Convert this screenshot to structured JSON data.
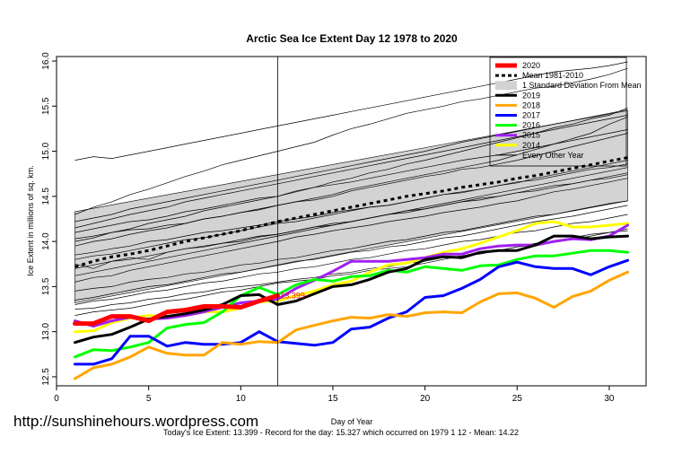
{
  "chart_data": {
    "type": "line",
    "title": "Arctic Sea Ice Extent Day 12 1978 to 2020",
    "xlabel": "Day of Year",
    "ylabel": "Ice Extent in millions of sq. km.",
    "xlim": [
      0,
      32
    ],
    "ylim": [
      12.4,
      16.05
    ],
    "xticks": [
      0,
      5,
      10,
      15,
      20,
      25,
      30
    ],
    "yticks": [
      12.5,
      13.0,
      13.5,
      14.0,
      14.5,
      15.0,
      15.5,
      16.0
    ],
    "current_day": 12,
    "current_value_label": "13.399",
    "watermark": "http://sunshinehours.wordpress.com",
    "footer": "Today's Ice Extent: 13.399   - Record for the day: 15.327 which occurred on 1979 1 12  - Mean: 14.22",
    "legend_position": "top-right",
    "legend": [
      {
        "label": "2020",
        "color": "#ff0000",
        "style": "solid",
        "width": 5
      },
      {
        "label": "Mean 1981-2010",
        "color": "#000000",
        "style": "dashed",
        "width": 3
      },
      {
        "label": "1 Standard Deviation From Mean",
        "color": "#d3d3d3",
        "style": "box",
        "width": 0
      },
      {
        "label": "2019",
        "color": "#000000",
        "style": "solid",
        "width": 3
      },
      {
        "label": "2018",
        "color": "#ffa500",
        "style": "solid",
        "width": 3
      },
      {
        "label": "2017",
        "color": "#0000ff",
        "style": "solid",
        "width": 3
      },
      {
        "label": "2016",
        "color": "#00ff00",
        "style": "solid",
        "width": 3
      },
      {
        "label": "2015",
        "color": "#a020f0",
        "style": "solid",
        "width": 3
      },
      {
        "label": "2014",
        "color": "#ffff00",
        "style": "solid",
        "width": 3
      },
      {
        "label": "Every Other Year",
        "color": "#000000",
        "style": "solid",
        "width": 1
      }
    ],
    "std_band": {
      "x": [
        1,
        31
      ],
      "upper": [
        14.33,
        15.45
      ],
      "lower": [
        13.32,
        14.45
      ]
    },
    "mean_series": {
      "name": "Mean 1981-2010",
      "x": [
        1,
        2,
        3,
        4,
        5,
        6,
        7,
        8,
        9,
        10,
        11,
        12,
        13,
        14,
        15,
        16,
        17,
        18,
        19,
        20,
        21,
        22,
        23,
        24,
        25,
        26,
        27,
        28,
        29,
        30,
        31
      ],
      "values": [
        13.72,
        13.78,
        13.83,
        13.86,
        13.9,
        13.95,
        14.0,
        14.04,
        14.08,
        14.12,
        14.17,
        14.22,
        14.26,
        14.3,
        14.34,
        14.38,
        14.42,
        14.46,
        14.5,
        14.53,
        14.56,
        14.6,
        14.63,
        14.66,
        14.7,
        14.73,
        14.77,
        14.81,
        14.85,
        14.89,
        14.93
      ]
    },
    "series": [
      {
        "name": "2020",
        "color": "#ff0000",
        "width": 5,
        "x": [
          1,
          2,
          3,
          4,
          5,
          6,
          7,
          8,
          9,
          10,
          11,
          12
        ],
        "values": [
          13.09,
          13.09,
          13.17,
          13.17,
          13.12,
          13.22,
          13.24,
          13.28,
          13.28,
          13.27,
          13.34,
          13.4
        ]
      },
      {
        "name": "2019",
        "color": "#000000",
        "width": 3,
        "x": [
          1,
          2,
          3,
          4,
          5,
          6,
          7,
          8,
          9,
          10,
          11,
          12,
          13,
          14,
          15,
          16,
          17,
          18,
          19,
          20,
          21,
          22,
          23,
          24,
          25,
          26,
          27,
          28,
          29,
          30,
          31
        ],
        "values": [
          12.88,
          12.94,
          12.97,
          13.05,
          13.14,
          13.17,
          13.2,
          13.24,
          13.3,
          13.4,
          13.41,
          13.3,
          13.34,
          13.42,
          13.5,
          13.52,
          13.58,
          13.66,
          13.7,
          13.8,
          13.83,
          13.82,
          13.88,
          13.9,
          13.9,
          13.96,
          14.06,
          14.06,
          14.03,
          14.05,
          14.06
        ]
      },
      {
        "name": "2018",
        "color": "#ffa500",
        "width": 3,
        "x": [
          1,
          2,
          3,
          4,
          5,
          6,
          7,
          8,
          9,
          10,
          11,
          12,
          13,
          14,
          15,
          16,
          17,
          18,
          19,
          20,
          21,
          22,
          23,
          24,
          25,
          26,
          27,
          28,
          29,
          30,
          31
        ],
        "values": [
          12.48,
          12.6,
          12.64,
          12.72,
          12.83,
          12.76,
          12.74,
          12.74,
          12.88,
          12.86,
          12.89,
          12.88,
          13.02,
          13.07,
          13.12,
          13.16,
          13.15,
          13.19,
          13.17,
          13.21,
          13.22,
          13.21,
          13.33,
          13.42,
          13.43,
          13.37,
          13.27,
          13.39,
          13.45,
          13.57,
          13.66
        ]
      },
      {
        "name": "2017",
        "color": "#0000ff",
        "width": 3,
        "x": [
          1,
          2,
          3,
          4,
          5,
          6,
          7,
          8,
          9,
          10,
          11,
          12,
          13,
          14,
          15,
          16,
          17,
          18,
          19,
          20,
          21,
          22,
          23,
          24,
          25,
          26,
          27,
          28,
          29,
          30,
          31
        ],
        "values": [
          12.64,
          12.64,
          12.7,
          12.95,
          12.95,
          12.84,
          12.88,
          12.86,
          12.86,
          12.88,
          13.0,
          12.89,
          12.87,
          12.85,
          12.88,
          13.03,
          13.05,
          13.15,
          13.22,
          13.38,
          13.4,
          13.48,
          13.58,
          13.72,
          13.77,
          13.72,
          13.7,
          13.7,
          13.63,
          13.72,
          13.79
        ]
      },
      {
        "name": "2016",
        "color": "#00ff00",
        "width": 3,
        "x": [
          1,
          2,
          3,
          4,
          5,
          6,
          7,
          8,
          9,
          10,
          11,
          12,
          13,
          14,
          15,
          16,
          17,
          18,
          19,
          20,
          21,
          22,
          23,
          24,
          25,
          26,
          27,
          28,
          29,
          30,
          31
        ],
        "values": [
          12.72,
          12.8,
          12.79,
          12.83,
          12.88,
          13.04,
          13.08,
          13.1,
          13.22,
          13.4,
          13.49,
          13.41,
          13.52,
          13.58,
          13.56,
          13.61,
          13.62,
          13.68,
          13.66,
          13.72,
          13.7,
          13.68,
          13.73,
          13.74,
          13.8,
          13.84,
          13.84,
          13.87,
          13.9,
          13.9,
          13.88
        ]
      },
      {
        "name": "2015",
        "color": "#a020f0",
        "width": 3,
        "x": [
          1,
          2,
          3,
          4,
          5,
          6,
          7,
          8,
          9,
          10,
          11,
          12,
          13,
          14,
          15,
          16,
          17,
          18,
          19,
          20,
          21,
          22,
          23,
          24,
          25,
          26,
          27,
          28,
          29,
          30,
          31
        ],
        "values": [
          13.12,
          13.06,
          13.12,
          13.16,
          13.14,
          13.15,
          13.18,
          13.22,
          13.27,
          13.32,
          13.34,
          13.36,
          13.48,
          13.57,
          13.67,
          13.78,
          13.78,
          13.78,
          13.8,
          13.82,
          13.86,
          13.86,
          13.92,
          13.95,
          13.96,
          13.96,
          14.0,
          14.03,
          14.02,
          14.06,
          14.18
        ]
      },
      {
        "name": "2014",
        "color": "#ffff00",
        "width": 3,
        "x": [
          1,
          2,
          3,
          4,
          5,
          6,
          7,
          8,
          9,
          10,
          11,
          12,
          13,
          14,
          15,
          16,
          17,
          18,
          19,
          20,
          21,
          22,
          23,
          24,
          25,
          26,
          27,
          28,
          29,
          30,
          31
        ],
        "values": [
          13.0,
          13.01,
          13.1,
          13.15,
          13.18,
          13.17,
          13.18,
          13.22,
          13.22,
          13.26,
          13.33,
          13.34,
          13.4,
          13.45,
          13.52,
          13.56,
          13.66,
          13.74,
          13.76,
          13.82,
          13.88,
          13.92,
          13.98,
          14.05,
          14.12,
          14.2,
          14.22,
          14.16,
          14.16,
          14.18,
          14.2
        ]
      }
    ],
    "every_other_year": [
      [
        14.03,
        14.06,
        14.1,
        14.13,
        14.14,
        14.18,
        14.2,
        14.25,
        14.28,
        14.32,
        14.36,
        14.4,
        14.44,
        14.48,
        14.52,
        14.58,
        14.62,
        14.66,
        14.7,
        14.74,
        14.78,
        14.82,
        14.86,
        14.9,
        14.96,
        15.02,
        15.08,
        15.14,
        15.2,
        15.3,
        15.38
      ],
      [
        14.3,
        14.38,
        14.44,
        14.52,
        14.58,
        14.65,
        14.72,
        14.78,
        14.85,
        14.9,
        14.95,
        15.0,
        15.05,
        15.1,
        15.18,
        15.25,
        15.3,
        15.36,
        15.42,
        15.46,
        15.5,
        15.55,
        15.58,
        15.62,
        15.66,
        15.7,
        15.72,
        15.76,
        15.8,
        15.85,
        15.92
      ],
      [
        13.95,
        14.0,
        14.03,
        14.08,
        14.12,
        14.15,
        14.2,
        14.25,
        14.28,
        14.32,
        14.35,
        14.4,
        14.44,
        14.46,
        14.5,
        14.56,
        14.6,
        14.64,
        14.68,
        14.72,
        14.75,
        14.8,
        14.82,
        14.86,
        14.9,
        14.95,
        15.0,
        15.05,
        15.1,
        15.15,
        15.2
      ],
      [
        13.85,
        13.88,
        13.92,
        13.95,
        14.0,
        14.02,
        14.06,
        14.1,
        14.12,
        14.15,
        14.18,
        14.22,
        14.25,
        14.28,
        14.32,
        14.35,
        14.38,
        14.4,
        14.44,
        14.48,
        14.52,
        14.55,
        14.58,
        14.62,
        14.65,
        14.7,
        14.74,
        14.78,
        14.82,
        14.86,
        14.9
      ],
      [
        13.55,
        13.6,
        13.62,
        13.68,
        13.72,
        13.76,
        13.8,
        13.84,
        13.88,
        13.92,
        13.96,
        14.0,
        14.05,
        14.08,
        14.12,
        14.15,
        14.18,
        14.22,
        14.25,
        14.28,
        14.32,
        14.35,
        14.38,
        14.42,
        14.45,
        14.5,
        14.55,
        14.58,
        14.62,
        14.66,
        14.7
      ],
      [
        13.35,
        13.38,
        13.42,
        13.46,
        13.5,
        13.52,
        13.56,
        13.6,
        13.64,
        13.66,
        13.7,
        13.74,
        13.78,
        13.8,
        13.84,
        13.88,
        13.9,
        13.94,
        13.96,
        14.0,
        14.04,
        14.06,
        14.1,
        14.14,
        14.18,
        14.22,
        14.25,
        14.28,
        14.32,
        14.36,
        14.4
      ],
      [
        13.18,
        13.22,
        13.24,
        13.26,
        13.3,
        13.34,
        13.36,
        13.4,
        13.44,
        13.46,
        13.5,
        13.54,
        13.56,
        13.58,
        13.62,
        13.64,
        13.68,
        13.7,
        13.72,
        13.76,
        13.8,
        13.84,
        13.86,
        13.9,
        13.94,
        13.96,
        14.0,
        14.02,
        14.06,
        14.1,
        14.12
      ],
      [
        14.1,
        14.14,
        14.18,
        14.22,
        14.24,
        14.28,
        14.33,
        14.36,
        14.4,
        14.44,
        14.48,
        14.5,
        14.55,
        14.6,
        14.63,
        14.66,
        14.7,
        14.74,
        14.78,
        14.82,
        14.86,
        14.9,
        14.93,
        14.96,
        15.0,
        15.04,
        15.08,
        15.12,
        15.16,
        15.2,
        15.24
      ],
      [
        13.75,
        13.7,
        13.78,
        13.82,
        13.8,
        13.88,
        13.92,
        13.95,
        13.98,
        14.0,
        14.05,
        14.08,
        14.12,
        14.16,
        14.18,
        14.22,
        14.26,
        14.3,
        14.32,
        14.36,
        14.4,
        14.44,
        14.46,
        14.5,
        14.54,
        14.56,
        14.6,
        14.64,
        14.68,
        14.7,
        14.74
      ],
      [
        14.22,
        14.26,
        14.3,
        14.36,
        14.4,
        14.44,
        14.48,
        14.52,
        14.56,
        14.6,
        14.64,
        14.68,
        14.72,
        14.76,
        14.8,
        14.84,
        14.88,
        14.92,
        14.96,
        15.0,
        15.05,
        15.1,
        15.14,
        15.18,
        15.22,
        15.26,
        15.3,
        15.34,
        15.38,
        15.42,
        15.46
      ],
      [
        13.45,
        13.48,
        13.5,
        13.55,
        13.58,
        13.6,
        13.64,
        13.66,
        13.7,
        13.74,
        13.76,
        13.8,
        13.82,
        13.86,
        13.9,
        13.92,
        13.96,
        14.0,
        14.02,
        14.06,
        14.1,
        14.12,
        14.16,
        14.2,
        14.24,
        14.28,
        14.3,
        14.34,
        14.38,
        14.42,
        14.45
      ],
      [
        13.25,
        13.26,
        13.3,
        13.32,
        13.36,
        13.38,
        13.42,
        13.44,
        13.48,
        13.5,
        13.52,
        13.55,
        13.58,
        13.6,
        13.64,
        13.66,
        13.7,
        13.72,
        13.76,
        13.78,
        13.82,
        13.84,
        13.88,
        13.9,
        13.94,
        13.98,
        14.0,
        14.04,
        14.08,
        14.1,
        14.14
      ],
      [
        14.0,
        14.04,
        14.1,
        14.14,
        14.2,
        14.24,
        14.28,
        14.34,
        14.38,
        14.42,
        14.46,
        14.5,
        14.56,
        14.6,
        14.66,
        14.7,
        14.76,
        14.8,
        14.86,
        14.9,
        14.95,
        15.0,
        15.05,
        15.1,
        15.15,
        15.2,
        15.26,
        15.3,
        15.36,
        15.4,
        15.48
      ],
      [
        13.62,
        13.66,
        13.7,
        13.74,
        13.78,
        13.82,
        13.86,
        13.9,
        13.94,
        13.98,
        14.02,
        14.06,
        14.1,
        14.14,
        14.18,
        14.22,
        14.26,
        14.3,
        14.34,
        14.38,
        14.42,
        14.46,
        14.5,
        14.54,
        14.58,
        14.62,
        14.66,
        14.7,
        14.74,
        14.78,
        14.82
      ],
      [
        14.9,
        14.94,
        14.92,
        14.96,
        15.0,
        15.04,
        15.08,
        15.12,
        15.16,
        15.2,
        15.24,
        15.28,
        15.32,
        15.36,
        15.4,
        15.44,
        15.48,
        15.52,
        15.56,
        15.6,
        15.64,
        15.68,
        15.72,
        15.76,
        15.8,
        15.84,
        15.88,
        15.9,
        15.92,
        15.95,
        15.99
      ],
      [
        13.8,
        13.84,
        13.86,
        13.9,
        13.94,
        13.98,
        14.02,
        14.04,
        14.08,
        14.12,
        14.16,
        14.2,
        14.22,
        14.26,
        14.3,
        14.34,
        14.38,
        14.4,
        14.44,
        14.48,
        14.52,
        14.54,
        14.58,
        14.62,
        14.66,
        14.68,
        14.72,
        14.76,
        14.8,
        14.82,
        14.86
      ],
      [
        13.3,
        13.34,
        13.36,
        13.4,
        13.44,
        13.46,
        13.5,
        13.54,
        13.56,
        13.6,
        13.64,
        13.66,
        13.7,
        13.72,
        13.76,
        13.8,
        13.82,
        13.86,
        13.9,
        13.92,
        13.96,
        14.0,
        14.02,
        14.06,
        14.1,
        14.12,
        14.16,
        14.2,
        14.22,
        14.26,
        14.3
      ],
      [
        14.15,
        14.2,
        14.25,
        14.3,
        14.34,
        14.38,
        14.44,
        14.48,
        14.52,
        14.56,
        14.6,
        14.64,
        14.68,
        14.72,
        14.76,
        14.8,
        14.84,
        14.88,
        14.92,
        14.96,
        15.0,
        15.04,
        15.08,
        15.12,
        15.16,
        15.2,
        15.24,
        15.28,
        15.32,
        15.36,
        15.4
      ],
      [
        13.7,
        13.74,
        13.78,
        13.8,
        13.84,
        13.88,
        13.92,
        13.94,
        13.98,
        14.02,
        14.06,
        14.08,
        14.12,
        14.16,
        14.2,
        14.22,
        14.26,
        14.3,
        14.34,
        14.36,
        14.4,
        14.44,
        14.48,
        14.5,
        14.54,
        14.58,
        14.62,
        14.64,
        14.68,
        14.72,
        14.76
      ]
    ]
  }
}
